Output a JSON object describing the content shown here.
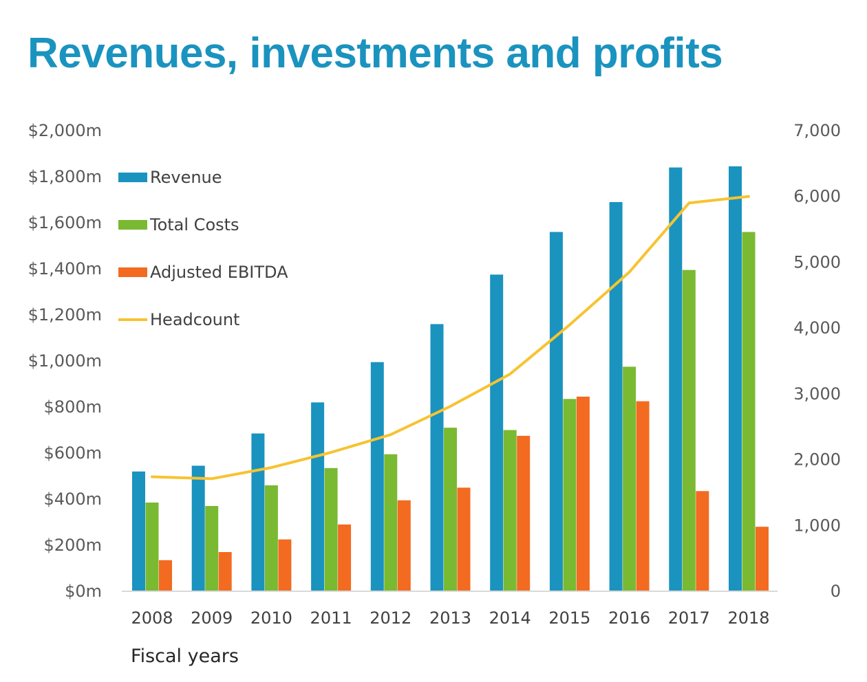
{
  "chart_data": {
    "type": "bar",
    "title": "Revenues, investments and profits",
    "xlabel": "Fiscal years",
    "categories": [
      "2008",
      "2009",
      "2010",
      "2011",
      "2012",
      "2013",
      "2014",
      "2015",
      "2016",
      "2017",
      "2018"
    ],
    "series": [
      {
        "name": "Revenue",
        "type": "bar",
        "axis": "left",
        "color": "#1a93bf",
        "values": [
          520,
          545,
          685,
          820,
          995,
          1160,
          1375,
          1560,
          1690,
          1840,
          1845
        ]
      },
      {
        "name": "Total Costs",
        "type": "bar",
        "axis": "left",
        "color": "#7ab932",
        "values": [
          385,
          370,
          460,
          535,
          595,
          710,
          700,
          835,
          975,
          1395,
          1560
        ]
      },
      {
        "name": "Adjusted EBITDA",
        "type": "bar",
        "axis": "left",
        "color": "#f26b21",
        "values": [
          135,
          170,
          225,
          290,
          395,
          450,
          675,
          845,
          825,
          435,
          280
        ]
      },
      {
        "name": "Headcount",
        "type": "line",
        "axis": "right",
        "color": "#f7c331",
        "values": [
          1740,
          1710,
          1880,
          2110,
          2380,
          2810,
          3300,
          4050,
          4850,
          5900,
          6000
        ]
      }
    ],
    "y_left": {
      "range": [
        0,
        2000
      ],
      "ticks": [
        0,
        200,
        400,
        600,
        800,
        1000,
        1200,
        1400,
        1600,
        1800,
        2000
      ],
      "tick_labels": [
        "$0m",
        "$200m",
        "$400m",
        "$600m",
        "$800m",
        "$1,000m",
        "$1,200m",
        "$1,400m",
        "$1,600m",
        "$1,800m",
        "$2,000m"
      ]
    },
    "y_right": {
      "range": [
        0,
        7000
      ],
      "ticks": [
        0,
        1000,
        2000,
        3000,
        4000,
        5000,
        6000,
        7000
      ],
      "tick_labels": [
        "0",
        "1,000",
        "2,000",
        "3,000",
        "4,000",
        "5,000",
        "6,000",
        "7,000"
      ]
    },
    "grid": false,
    "legend_placement": "top-left"
  }
}
